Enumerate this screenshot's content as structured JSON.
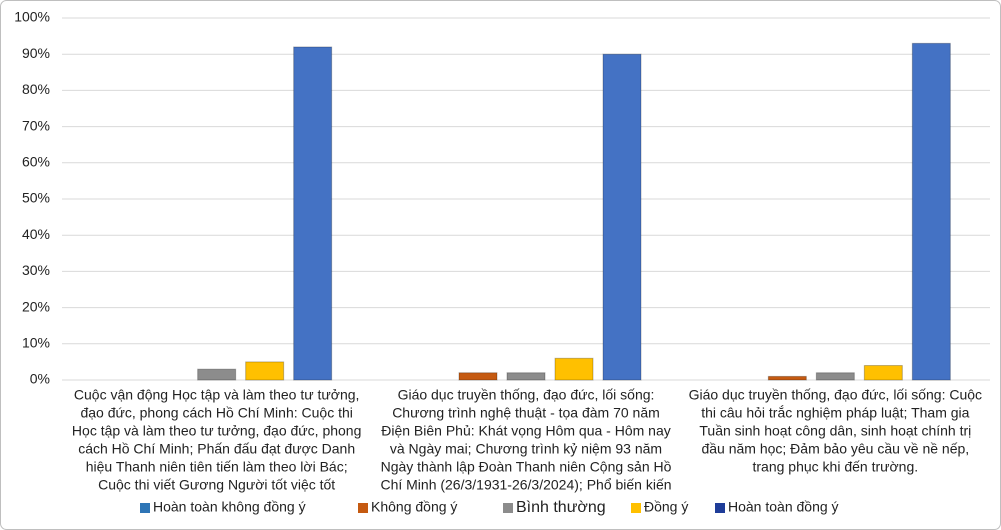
{
  "chart_data": {
    "type": "bar",
    "categories": [
      [
        "Cuộc vận động Học tập và làm theo tư tưởng,",
        "đạo đức, phong cách Hồ Chí Minh: Cuộc thi",
        "Học tập và làm theo tư tưởng, đạo đức, phong",
        "cách Hồ Chí Minh; Phấn đấu đạt được Danh",
        "hiệu Thanh niên tiên tiến làm theo lời Bác;",
        "Cuộc thi viết Gương Người tốt việc tốt"
      ],
      [
        "Giáo dục truyền thống, đạo đức, lối sống:",
        "Chương trình nghệ thuật - tọa đàm 70 năm",
        "Điện Biên Phủ: Khát vọng Hôm qua - Hôm nay",
        "và Ngày mai; Chương trình kỷ niệm 93 năm",
        "Ngày thành lập Đoàn Thanh niên Cộng sản Hồ",
        "Chí Minh (26/3/1931-26/3/2024); Phổ biến kiến"
      ],
      [
        "Giáo dục truyền thống, đạo đức, lối sống: Cuộc",
        "thi câu hỏi trắc nghiệm pháp luật; Tham gia",
        "Tuần sinh hoạt công dân, sinh hoạt chính trị",
        "đầu năm học; Đảm bảo yêu cầu về nề nếp,",
        "trang phục khi đến trường."
      ]
    ],
    "series": [
      {
        "name": "Hoàn toàn không đồng ý",
        "color": "#2e75b6",
        "values": [
          0,
          0,
          0
        ]
      },
      {
        "name": "Không đồng ý",
        "color": "#c55a11",
        "values": [
          0,
          2,
          1
        ]
      },
      {
        "name": "Bình thường",
        "color": "#8c8c8c",
        "values": [
          3,
          2,
          2
        ]
      },
      {
        "name": "Đồng ý",
        "color": "#ffc000",
        "values": [
          5,
          6,
          4
        ]
      },
      {
        "name": "Hoàn toàn đồng ý",
        "color": "#4472c4",
        "values": [
          92,
          90,
          93
        ]
      }
    ],
    "ylim": [
      0,
      100
    ],
    "yticks": [
      {
        "value": 0,
        "label": "0%"
      },
      {
        "value": 10,
        "label": "10%"
      },
      {
        "value": 20,
        "label": "20%"
      },
      {
        "value": 30,
        "label": "30%"
      },
      {
        "value": 40,
        "label": "40%"
      },
      {
        "value": 50,
        "label": "50%"
      },
      {
        "value": 60,
        "label": "60%"
      },
      {
        "value": 70,
        "label": "70%"
      },
      {
        "value": 80,
        "label": "80%"
      },
      {
        "value": 90,
        "label": "90%"
      },
      {
        "value": 100,
        "label": "100%"
      }
    ],
    "grid": true,
    "legend": "bottom"
  }
}
